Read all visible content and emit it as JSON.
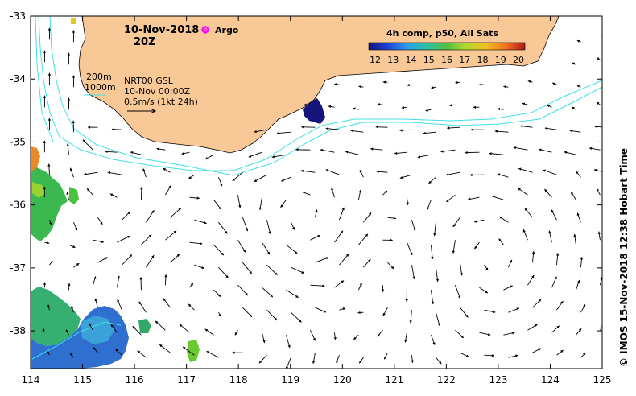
{
  "header": {
    "date": "10-Nov-2018",
    "time": "20Z",
    "argo_label": "Argo"
  },
  "colorbar": {
    "title": "4h comp, p50, All Sats",
    "ticks": [
      "12",
      "13",
      "14",
      "15",
      "16",
      "17",
      "18",
      "19",
      "20"
    ],
    "range": [
      12,
      20
    ]
  },
  "info": {
    "depth_200": "200m",
    "depth_1000": "1000m",
    "product": "NRT00 GSL",
    "product_time": "10-Nov 00:00Z",
    "scale": "0.5m/s (1kt 24h)"
  },
  "axes": {
    "x_ticks": [
      "114",
      "115",
      "116",
      "117",
      "118",
      "119",
      "120",
      "121",
      "122",
      "123",
      "124",
      "125"
    ],
    "y_ticks": [
      "-33",
      "-34",
      "-35",
      "-36",
      "-37",
      "-38"
    ],
    "xlim": [
      114,
      125
    ],
    "ylim": [
      -38.6,
      -33
    ]
  },
  "credit": "© IMOS 15-Nov-2018 12:38 Hobart Time",
  "colors": {
    "land": "#f8c896",
    "contour": "#40e0e8",
    "argo": "#ff00ff"
  }
}
